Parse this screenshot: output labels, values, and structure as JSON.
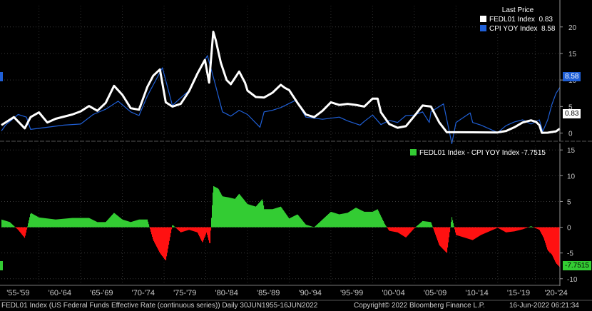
{
  "chart_data": [
    {
      "type": "line",
      "title": "",
      "legend": {
        "header": "Last Price",
        "entries": [
          {
            "name": "FEDL01 Index",
            "value": "0.83",
            "color": "#ffffff"
          },
          {
            "name": "CPI YOY Index",
            "value": "8.58",
            "color": "#1f5fd6"
          }
        ],
        "placement": "top-right"
      },
      "ylim": [
        -1,
        24
      ],
      "yticks": [
        "20",
        "15",
        "10",
        "5",
        "0"
      ],
      "last_value_tags": [
        "8.58",
        "0.83"
      ],
      "series": [
        {
          "name": "FEDL01 Index",
          "x": [
            1955.5,
            1957,
            1958.3,
            1959,
            1960,
            1961,
            1962,
            1963,
            1964,
            1965,
            1966,
            1967,
            1968,
            1969,
            1970,
            1971,
            1972,
            1973,
            1973.7,
            1974.5,
            1975.2,
            1976,
            1977,
            1978,
            1979,
            1979.9,
            1980.4,
            1980.9,
            1981.2,
            1981.8,
            1982.5,
            1983,
            1984,
            1984.7,
            1985,
            1986,
            1987,
            1988,
            1989,
            1989.5,
            1990,
            1991,
            1992,
            1993,
            1994,
            1995,
            1996,
            1997,
            1998,
            1999,
            2000,
            2000.6,
            2001,
            2002,
            2003,
            2004,
            2005,
            2006,
            2007,
            2008,
            2008.9,
            2009,
            2010,
            2012,
            2015,
            2016,
            2017,
            2018,
            2019,
            2019.6,
            2020,
            2020.3,
            2021,
            2022,
            2022.45
          ],
          "values": [
            1.5,
            3.0,
            0.9,
            3.0,
            3.9,
            2.0,
            2.7,
            3.1,
            3.5,
            4.1,
            5.1,
            4.2,
            5.7,
            8.9,
            7.2,
            4.7,
            4.4,
            8.7,
            10.8,
            12.0,
            5.8,
            5.0,
            5.5,
            7.9,
            11.2,
            13.8,
            9.5,
            19.1,
            17.5,
            13.3,
            10.0,
            9.2,
            11.6,
            9.5,
            8.0,
            6.8,
            6.7,
            7.6,
            9.1,
            8.5,
            8.1,
            5.7,
            3.5,
            3.0,
            4.2,
            5.8,
            5.3,
            5.5,
            5.3,
            5.0,
            6.5,
            6.5,
            3.9,
            1.7,
            1.0,
            1.3,
            3.2,
            5.2,
            5.0,
            2.0,
            0.16,
            0.16,
            0.15,
            0.14,
            0.12,
            0.4,
            1.1,
            2.0,
            2.4,
            2.1,
            1.5,
            0.05,
            0.08,
            0.33,
            0.83
          ]
        },
        {
          "name": "CPI YOY Index",
          "x": [
            1955.5,
            1956,
            1957.5,
            1958.5,
            1959,
            1961,
            1963,
            1965,
            1966.5,
            1968,
            1969.5,
            1971,
            1972,
            1973,
            1974.8,
            1976,
            1976.9,
            1978,
            1979,
            1980.2,
            1981,
            1982,
            1983,
            1984,
            1985,
            1986.5,
            1987,
            1988,
            1989,
            1990.8,
            1992,
            1993,
            1994,
            1995,
            1996,
            1997,
            1998.5,
            1999,
            2000,
            2001,
            2002,
            2003,
            2004,
            2005,
            2006,
            2006.8,
            2007,
            2008.5,
            2009.5,
            2010,
            2011.7,
            2012,
            2013,
            2015,
            2016,
            2017,
            2018,
            2019,
            2020,
            2020.4,
            2021,
            2021.5,
            2022,
            2022.45
          ],
          "values": [
            0.4,
            1.5,
            3.5,
            3.0,
            0.7,
            1.1,
            1.5,
            1.7,
            3.5,
            4.5,
            6.0,
            4.0,
            3.3,
            7.0,
            12.3,
            5.2,
            6.5,
            8.0,
            11.3,
            14.6,
            10.0,
            4.0,
            3.2,
            4.3,
            3.5,
            1.1,
            4.0,
            4.3,
            4.8,
            6.2,
            3.0,
            2.8,
            2.6,
            2.8,
            3.0,
            2.3,
            1.5,
            2.2,
            3.4,
            1.6,
            2.4,
            2.0,
            3.3,
            3.4,
            4.0,
            2.0,
            4.0,
            5.5,
            -2.0,
            2.0,
            3.8,
            2.0,
            1.5,
            0.1,
            1.4,
            2.1,
            2.5,
            1.7,
            2.5,
            0.3,
            2.5,
            5.4,
            7.5,
            8.58
          ]
        }
      ]
    },
    {
      "type": "area",
      "title": "",
      "legend": {
        "entries": [
          {
            "name": "FEDL01 Index - CPI YOY Index -7.7515",
            "color": "#33cc33"
          }
        ],
        "placement": "top-right"
      },
      "ylim": [
        -11,
        16
      ],
      "yticks": [
        "15",
        "10",
        "5",
        "0",
        "-5",
        "-10"
      ],
      "last_value_tag": "-7.7515",
      "positive_color": "#33cc33",
      "negative_color": "#ff1111",
      "series": [
        {
          "name": "FEDL01 Index - CPI YOY Index",
          "x": [
            1955.5,
            1956.5,
            1957.5,
            1958.3,
            1959,
            1960,
            1962,
            1964,
            1966,
            1967,
            1968,
            1969,
            1970,
            1971,
            1972,
            1973,
            1973.7,
            1974.5,
            1975.2,
            1976,
            1977,
            1978,
            1979,
            1979.6,
            1980.1,
            1980.5,
            1980.9,
            1981.5,
            1982,
            1982.7,
            1983.5,
            1984,
            1985,
            1986,
            1986.8,
            1987,
            1988,
            1989,
            1990,
            1991,
            1992,
            1993,
            1994,
            1995,
            1996,
            1997,
            1998,
            1999,
            2000,
            2000.6,
            2001.5,
            2002,
            2003,
            2004,
            2005,
            2006,
            2007,
            2008,
            2008.9,
            2009.5,
            2010,
            2012,
            2013,
            2015,
            2016,
            2017,
            2018,
            2019,
            2020,
            2020.5,
            2021,
            2021.5,
            2022,
            2022.45
          ],
          "values": [
            1.5,
            1.0,
            -0.5,
            -2.1,
            2.8,
            1.9,
            1.5,
            1.8,
            1.8,
            1.0,
            1.0,
            2.8,
            1.5,
            1.0,
            1.5,
            1.5,
            -2.5,
            -5.0,
            -6.5,
            0.5,
            -1.0,
            -0.5,
            -1.0,
            -3.0,
            -1.0,
            -3.5,
            8.0,
            7.5,
            6.0,
            5.8,
            5.5,
            6.5,
            4.5,
            4.0,
            5.5,
            3.5,
            3.5,
            4.0,
            1.7,
            2.5,
            0.5,
            0.0,
            1.5,
            3.0,
            2.5,
            2.8,
            3.8,
            3.0,
            3.0,
            3.5,
            0.5,
            -0.7,
            -1.0,
            -2.0,
            -0.2,
            1.2,
            1.0,
            -3.5,
            -5.0,
            2.0,
            -1.5,
            -2.5,
            -1.5,
            -0.1,
            -1.0,
            -0.8,
            -0.4,
            0.2,
            -0.5,
            -2.0,
            -4.5,
            -5.3,
            -7.0,
            -7.75
          ]
        }
      ]
    }
  ],
  "x_axis": {
    "range": [
      1955.5,
      2022.46
    ],
    "labels": [
      {
        "text": "'55-'59",
        "at": 1957.5
      },
      {
        "text": "'60-'64",
        "at": 1962.5
      },
      {
        "text": "'65-'69",
        "at": 1967.5
      },
      {
        "text": "'70-'74",
        "at": 1972.5
      },
      {
        "text": "'75-'79",
        "at": 1977.5
      },
      {
        "text": "'80-'84",
        "at": 1982.5
      },
      {
        "text": "'85-'89",
        "at": 1987.5
      },
      {
        "text": "'90-'94",
        "at": 1992.5
      },
      {
        "text": "'95-'99",
        "at": 1997.5
      },
      {
        "text": "'00-'04",
        "at": 2002.5
      },
      {
        "text": "'05-'09",
        "at": 2007.5
      },
      {
        "text": "'10-'14",
        "at": 2012.5
      },
      {
        "text": "'15-'19",
        "at": 2017.5
      },
      {
        "text": "'20-'24",
        "at": 2022.0
      }
    ]
  },
  "footer": {
    "description": "FEDL01 Index (US Federal Funds Effective Rate (continuous series))  Daily 30JUN1955-16JUN2022",
    "copyright": "Copyright© 2022 Bloomberg Finance L.P.",
    "timestamp": "16-Jun-2022 06:21:34"
  }
}
